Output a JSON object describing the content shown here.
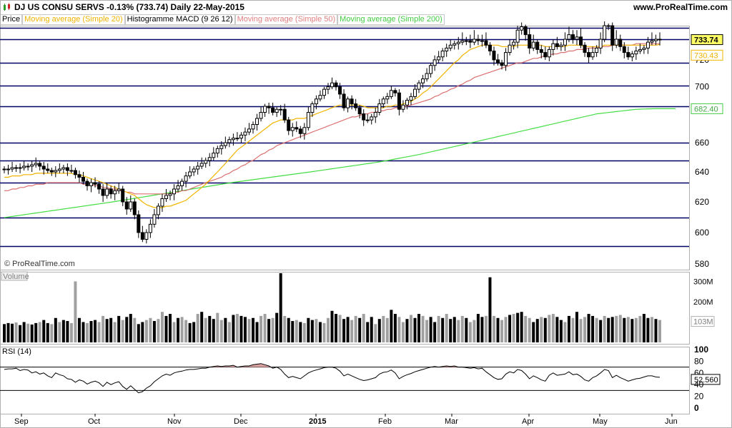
{
  "header": {
    "title": "DJ US CONSU SERVS   -0.13% (733.74)   Daily   22-May-2015",
    "site": "www.ProRealTime.com",
    "watermark": "© ProRealTime.com"
  },
  "legend": [
    {
      "label": "Price",
      "color": "#000000"
    },
    {
      "label": "Moving average (Simple 20)",
      "color": "#f0b400"
    },
    {
      "label": "Histogramme MACD (9 26 12)",
      "color": "#000000"
    },
    {
      "label": "Moving average (Simple 50)",
      "color": "#e08080"
    },
    {
      "label": "Moving average (Simple 200)",
      "color": "#44cc44"
    }
  ],
  "colors": {
    "hline": "#000066",
    "ma20": "#f0b400",
    "ma50": "#dc7070",
    "ma200": "#44dd44",
    "candle": "#000000",
    "volume_dark": "#000000",
    "volume_light": "#a0a0a0",
    "rsi": "#000000"
  },
  "chart_data": [
    {
      "type": "candlestick",
      "panel": "price",
      "ylim": [
        575,
        745
      ],
      "y_ticks": [
        "580",
        "600",
        "620",
        "640",
        "660",
        "700",
        "720"
      ],
      "x_tick_labels": [
        "Sep",
        "Oct",
        "Nov",
        "Dec",
        "2015",
        "Feb",
        "Mar",
        "Apr",
        "May",
        "Jun"
      ],
      "horizontal_levels": [
        590,
        609,
        632,
        648,
        660,
        684,
        701,
        718,
        734,
        739
      ],
      "price_badges": [
        {
          "label": "733.74",
          "value": 733.74,
          "style": "current"
        },
        {
          "label": "730.43",
          "value": 730.43,
          "style": "ma20"
        },
        {
          "label": "682.40",
          "value": 682.4,
          "style": "ma200"
        }
      ],
      "close": [
        642,
        642,
        643,
        643,
        643,
        644,
        644,
        645,
        646,
        644,
        642,
        641,
        640,
        641,
        642,
        643,
        641,
        641,
        638,
        636,
        633,
        630,
        632,
        631,
        628,
        624,
        628,
        625,
        627,
        628,
        620,
        615,
        620,
        611,
        600,
        595,
        600,
        605,
        611,
        617,
        622,
        624,
        625,
        628,
        630,
        633,
        637,
        640,
        642,
        644,
        646,
        648,
        650,
        653,
        656,
        658,
        660,
        662,
        663,
        663,
        665,
        667,
        669,
        672,
        676,
        680,
        684,
        683,
        680,
        682,
        682,
        675,
        668,
        670,
        669,
        666,
        670,
        680,
        686,
        690,
        693,
        698,
        700,
        703,
        700,
        694,
        683,
        690,
        686,
        683,
        679,
        675,
        675,
        677,
        680,
        686,
        690,
        692,
        697,
        695,
        682,
        685,
        689,
        692,
        698,
        703,
        706,
        710,
        716,
        720,
        722,
        726,
        728,
        730,
        731,
        732,
        733,
        733,
        732,
        734,
        733,
        733,
        730,
        726,
        720,
        718,
        716,
        725,
        730,
        732,
        738,
        740,
        736,
        728,
        732,
        727,
        725,
        722,
        727,
        731,
        729,
        730,
        734,
        736,
        734,
        735,
        730,
        725,
        722,
        725,
        728,
        734,
        741,
        741,
        730,
        734,
        729,
        725,
        722,
        724,
        726,
        727,
        728,
        732,
        733,
        734,
        733.74
      ],
      "ma20": [
        636,
        636,
        637,
        637,
        637,
        638,
        638,
        638,
        639,
        639,
        639,
        639,
        639,
        639,
        639,
        639,
        639,
        639,
        638,
        638,
        637,
        636,
        635,
        634,
        633,
        632,
        631,
        630,
        629,
        628,
        627,
        626,
        625,
        624,
        622,
        620,
        618,
        617,
        616,
        616,
        616,
        617,
        617,
        618,
        619,
        620,
        621,
        623,
        625,
        627,
        629,
        631,
        634,
        637,
        640,
        643,
        646,
        649,
        652,
        655,
        657,
        659,
        661,
        663,
        665,
        667,
        669,
        671,
        673,
        674,
        675,
        675,
        675,
        675,
        676,
        676,
        676,
        677,
        678,
        679,
        680,
        681,
        682,
        683,
        684,
        685,
        685,
        685,
        685,
        685,
        685,
        684,
        683,
        683,
        683,
        683,
        683,
        684,
        684,
        685,
        685,
        686,
        687,
        688,
        690,
        692,
        695,
        697,
        700,
        703,
        706,
        709,
        712,
        715,
        718,
        720,
        723,
        725,
        727,
        728,
        729,
        730,
        730,
        730,
        730,
        730,
        729,
        729,
        729,
        729,
        730,
        730,
        730,
        730,
        730,
        730,
        730,
        729,
        729,
        729,
        729,
        729,
        729,
        730,
        730,
        730,
        730,
        729,
        729,
        729,
        729,
        729,
        730,
        730,
        730,
        730,
        730,
        730,
        730,
        730,
        730,
        730,
        730,
        730,
        730,
        730,
        730.43
      ],
      "ma50": [
        627,
        627,
        628,
        628,
        629,
        629,
        630,
        630,
        631,
        631,
        631,
        632,
        632,
        632,
        632,
        632,
        632,
        632,
        632,
        632,
        631,
        631,
        631,
        630,
        630,
        629,
        629,
        628,
        628,
        627,
        627,
        626,
        626,
        625,
        625,
        625,
        625,
        625,
        625,
        625,
        625,
        625,
        625,
        626,
        626,
        627,
        627,
        628,
        629,
        630,
        631,
        632,
        633,
        634,
        635,
        636,
        638,
        639,
        641,
        642,
        644,
        645,
        647,
        648,
        650,
        652,
        653,
        655,
        656,
        658,
        659,
        660,
        661,
        662,
        663,
        664,
        665,
        666,
        667,
        668,
        669,
        670,
        671,
        672,
        673,
        674,
        675,
        676,
        677,
        677,
        678,
        679,
        679,
        680,
        680,
        681,
        681,
        682,
        682,
        683,
        683,
        684,
        684,
        685,
        686,
        687,
        688,
        689,
        690,
        692,
        693,
        695,
        696,
        698,
        699,
        701,
        702,
        704,
        705,
        707,
        708,
        709,
        710,
        711,
        712,
        713,
        714,
        715,
        716,
        717,
        718,
        718,
        719,
        720,
        721,
        721,
        722,
        723,
        723,
        724,
        724,
        725,
        725,
        726,
        726,
        727,
        727,
        727,
        728,
        728,
        728,
        729,
        729,
        729,
        730,
        730,
        730,
        730,
        730,
        730,
        731,
        731,
        731,
        731,
        731,
        731,
        731
      ],
      "ma200": [
        609,
        609.4,
        609.8,
        610.2,
        610.6,
        611,
        611.4,
        611.8,
        612.2,
        612.6,
        613,
        613.4,
        613.8,
        614.2,
        614.6,
        615,
        615.4,
        615.8,
        616.2,
        616.6,
        617,
        617.4,
        617.8,
        618.2,
        618.6,
        619,
        619.4,
        619.8,
        620.2,
        620.6,
        621,
        621.4,
        621.8,
        622.2,
        622.6,
        623,
        623.4,
        623.8,
        624.2,
        624.6,
        625,
        625.4,
        625.8,
        626.2,
        626.6,
        627,
        627.4,
        627.8,
        628.2,
        628.6,
        629,
        629.4,
        629.8,
        630.2,
        630.6,
        631,
        631.4,
        631.8,
        632.2,
        632.6,
        633,
        633.4,
        633.8,
        634.2,
        634.6,
        635,
        635.4,
        635.8,
        636.2,
        636.6,
        637,
        637.4,
        637.8,
        638.2,
        638.6,
        639,
        639.4,
        639.8,
        640.2,
        640.6,
        641,
        641.4,
        641.8,
        642.2,
        642.6,
        643,
        643.4,
        643.8,
        644.2,
        644.6,
        645,
        645.4,
        645.8,
        646.2,
        646.6,
        647,
        647.5,
        648,
        648.5,
        649,
        649.5,
        650,
        650.5,
        651,
        651.5,
        652,
        652.6,
        653.2,
        653.8,
        654.4,
        655,
        655.6,
        656.2,
        656.8,
        657.4,
        658,
        658.6,
        659.2,
        659.8,
        660.4,
        661,
        661.6,
        662.2,
        662.8,
        663.4,
        664,
        664.6,
        665.2,
        665.8,
        666.4,
        667,
        667.6,
        668.2,
        668.8,
        669.4,
        670,
        670.6,
        671.2,
        671.8,
        672.4,
        673,
        673.6,
        674.2,
        674.8,
        675.4,
        676,
        676.6,
        677.2,
        677.8,
        678.4,
        679,
        679.3,
        679.6,
        679.9,
        680.2,
        680.5,
        680.8,
        681.1,
        681.4,
        681.7,
        682,
        682.1,
        682.2,
        682.3,
        682.35,
        682.4,
        682.4,
        682.4,
        682.4,
        682.4,
        682.4
      ]
    },
    {
      "type": "bar",
      "panel": "volume",
      "series_name": "Volume",
      "y_ticks": [
        "300M",
        "200M",
        "103M"
      ],
      "ylim": [
        0,
        340
      ],
      "values": [
        90,
        95,
        92,
        98,
        85,
        100,
        92,
        88,
        95,
        100,
        110,
        95,
        90,
        120,
        100,
        110,
        105,
        95,
        300,
        120,
        100,
        95,
        105,
        110,
        100,
        130,
        115,
        120,
        100,
        130,
        110,
        125,
        140,
        120,
        90,
        100,
        110,
        120,
        105,
        115,
        150,
        130,
        140,
        100,
        120,
        125,
        110,
        95,
        100,
        140,
        150,
        120,
        130,
        115,
        145,
        110,
        120,
        100,
        135,
        140,
        130,
        125,
        115,
        120,
        100,
        130,
        140,
        115,
        120,
        145,
        340,
        130,
        120,
        105,
        110,
        100,
        95,
        120,
        110,
        115,
        100,
        95,
        120,
        155,
        140,
        135,
        115,
        125,
        110,
        130,
        120,
        140,
        100,
        125,
        90,
        115,
        130,
        120,
        160,
        140,
        125,
        100,
        115,
        135,
        120,
        140,
        130,
        110,
        125,
        100,
        130,
        120,
        140,
        115,
        125,
        110,
        130,
        120,
        100,
        110,
        140,
        125,
        130,
        320,
        130,
        120,
        110,
        125,
        135,
        140,
        145,
        150,
        130,
        120,
        100,
        115,
        125,
        120,
        135,
        140,
        125,
        110,
        100,
        130,
        120,
        150,
        115,
        125,
        140,
        130,
        120,
        110,
        130,
        120,
        125,
        130,
        135,
        120,
        125,
        115,
        120,
        130,
        140,
        120,
        125,
        115,
        110
      ],
      "dark_flags": [
        1,
        1,
        1,
        0,
        1,
        1,
        0,
        1,
        1,
        0,
        1,
        1,
        0,
        1,
        0,
        1,
        1,
        0,
        0,
        1,
        1,
        0,
        1,
        1,
        0,
        0,
        1,
        1,
        0,
        1,
        0,
        1,
        1,
        0,
        1,
        1,
        0,
        0,
        1,
        0,
        0,
        1,
        1,
        0,
        1,
        0,
        0,
        1,
        1,
        0,
        1,
        0,
        1,
        1,
        0,
        0,
        1,
        0,
        1,
        0,
        1,
        1,
        0,
        1,
        1,
        0,
        0,
        1,
        0,
        1,
        1,
        0,
        1,
        1,
        0,
        1,
        0,
        1,
        1,
        0,
        1,
        0,
        0,
        1,
        1,
        0,
        1,
        1,
        0,
        0,
        1,
        0,
        1,
        1,
        0,
        1,
        0,
        0,
        1,
        1,
        0,
        0,
        1,
        0,
        1,
        1,
        0,
        0,
        1,
        1,
        0,
        1,
        0,
        1,
        1,
        0,
        0,
        1,
        0,
        0,
        1,
        1,
        0,
        1,
        0,
        1,
        0,
        0,
        1,
        0,
        1,
        1,
        0,
        0,
        1,
        1,
        0,
        1,
        0,
        0,
        1,
        1,
        0,
        1,
        0,
        1,
        0,
        0,
        1,
        1,
        0,
        1,
        0,
        1,
        1,
        0,
        0,
        1,
        0,
        1,
        0,
        0,
        1,
        1,
        0,
        1,
        0
      ]
    },
    {
      "type": "line",
      "panel": "rsi",
      "series_name": "RSI (14)",
      "ylim": [
        0,
        100
      ],
      "y_ticks": [
        "100",
        "80",
        "60",
        "52.560",
        "40",
        "20",
        "0"
      ],
      "levels": [
        70,
        30
      ],
      "values": [
        66,
        67,
        67,
        68,
        64,
        66,
        65,
        60,
        62,
        58,
        60,
        55,
        52,
        60,
        57,
        55,
        50,
        49,
        44,
        48,
        46,
        41,
        44,
        46,
        43,
        37,
        44,
        40,
        43,
        45,
        37,
        32,
        38,
        32,
        26,
        28,
        34,
        38,
        45,
        50,
        55,
        58,
        56,
        60,
        62,
        63,
        65,
        66,
        66,
        67,
        68,
        68,
        70,
        71,
        72,
        71,
        72,
        72,
        73,
        70,
        71,
        72,
        72,
        74,
        75,
        76,
        74,
        72,
        68,
        70,
        66,
        58,
        52,
        54,
        52,
        50,
        55,
        60,
        63,
        65,
        67,
        69,
        70,
        70,
        68,
        63,
        55,
        58,
        55,
        52,
        49,
        47,
        48,
        50,
        52,
        58,
        61,
        62,
        65,
        60,
        50,
        54,
        57,
        59,
        62,
        64,
        66,
        68,
        70,
        71,
        70,
        71,
        72,
        71,
        72,
        70,
        70,
        69,
        68,
        69,
        67,
        68,
        62,
        57,
        52,
        49,
        50,
        58,
        62,
        60,
        66,
        64,
        58,
        50,
        55,
        52,
        48,
        46,
        56,
        60,
        56,
        57,
        58,
        62,
        57,
        58,
        54,
        48,
        46,
        52,
        55,
        60,
        66,
        64,
        52,
        56,
        52,
        49,
        46,
        48,
        50,
        51,
        53,
        55,
        55,
        53,
        52.56
      ],
      "badge": "52.560"
    }
  ]
}
